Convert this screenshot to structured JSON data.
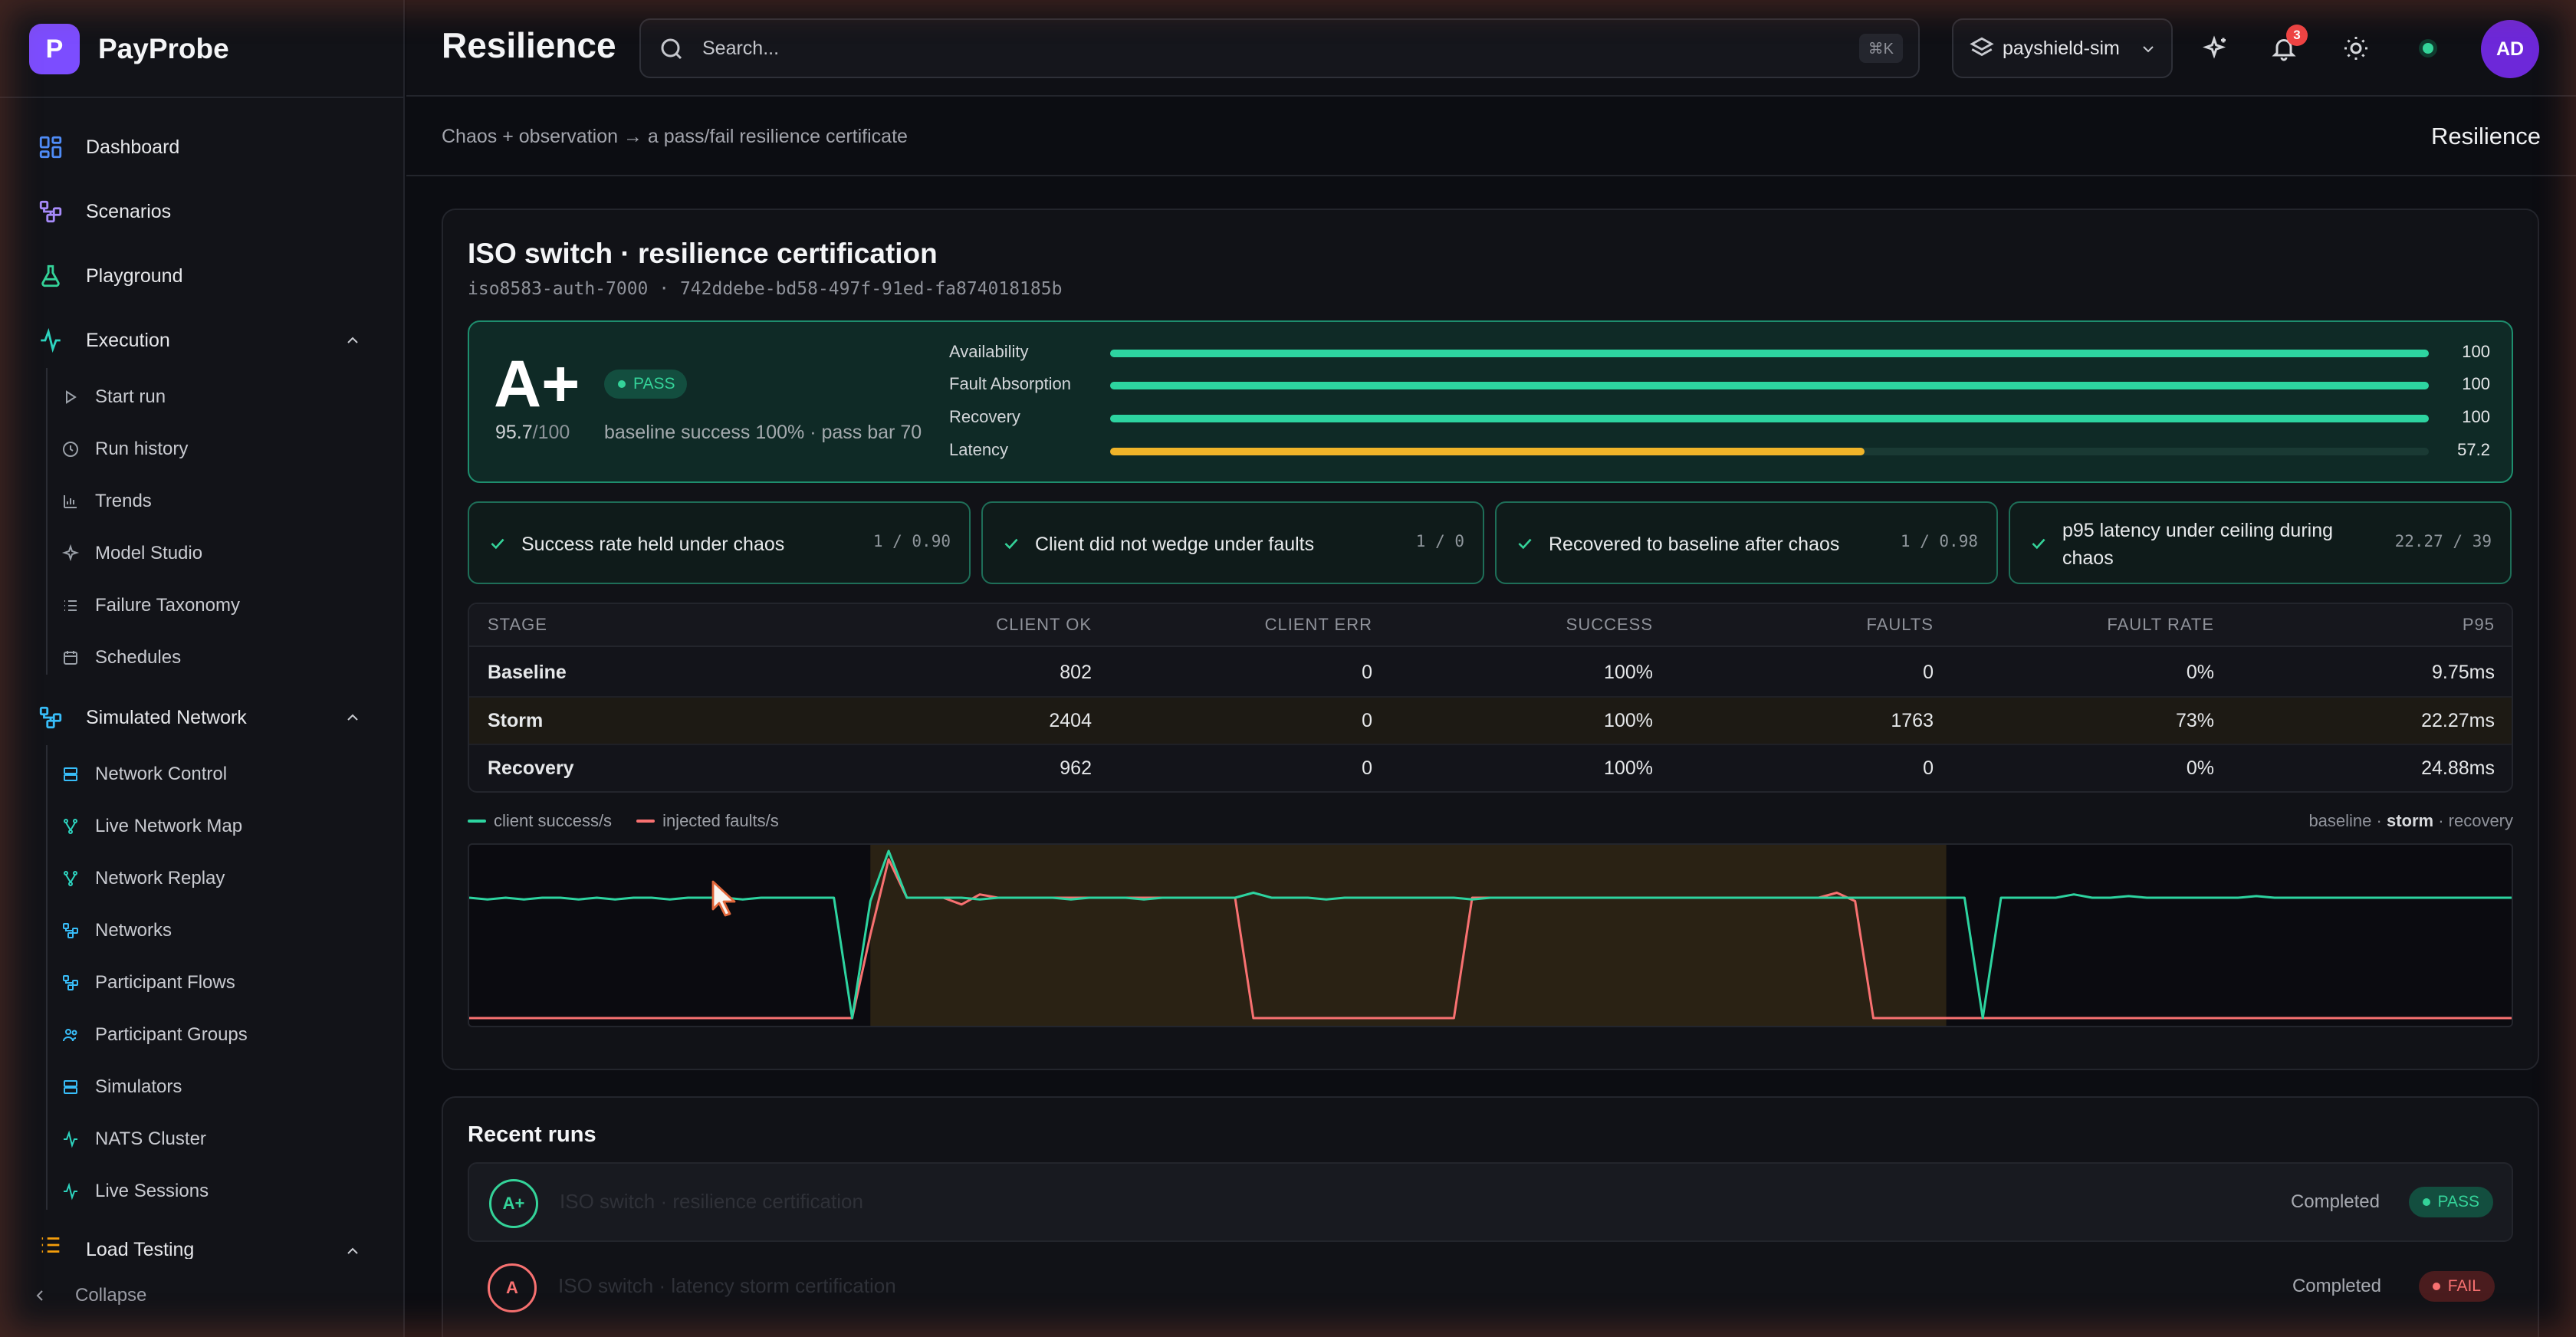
{
  "app": {
    "name": "PayProbe",
    "logo_letter": "P"
  },
  "sidebar": {
    "items": [
      {
        "label": "Dashboard",
        "icon": "dashboard-icon"
      },
      {
        "label": "Scenarios",
        "icon": "scenarios-icon"
      },
      {
        "label": "Playground",
        "icon": "flask-icon"
      }
    ],
    "execution": {
      "label": "Execution",
      "items": [
        "Start run",
        "Run history",
        "Trends",
        "Model Studio",
        "Failure Taxonomy",
        "Schedules"
      ]
    },
    "network": {
      "label": "Simulated Network",
      "items": [
        "Network Control",
        "Live Network Map",
        "Network Replay",
        "Networks",
        "Participant Flows",
        "Participant Groups",
        "Simulators",
        "NATS Cluster",
        "Live Sessions"
      ]
    },
    "load_testing": {
      "label": "Load Testing"
    },
    "collapse_label": "Collapse"
  },
  "topbar": {
    "title": "Resilience",
    "search_placeholder": "Search...",
    "search_shortcut": "⌘K",
    "environment": "payshield-sim",
    "notifications": "3",
    "user_initials": "AD"
  },
  "subheader": {
    "description": "Chaos + observation → a pass/fail resilience certificate",
    "breadcrumb": "Resilience"
  },
  "certificate": {
    "title": "ISO switch · resilience certification",
    "subtitle": "iso8583-auth-7000 · 742ddebe-bd58-497f-91ed-fa874018185b",
    "grade": "A+",
    "score": "95.7",
    "score_den": "/100",
    "status": "PASS",
    "note": "baseline success 100% · pass bar 70",
    "metrics": [
      {
        "label": "Availability",
        "value": "100",
        "fraction": 1.0,
        "color": "#2dd4a0"
      },
      {
        "label": "Fault Absorption",
        "value": "100",
        "fraction": 1.0,
        "color": "#2dd4a0"
      },
      {
        "label": "Recovery",
        "value": "100",
        "fraction": 1.0,
        "color": "#2dd4a0"
      },
      {
        "label": "Latency",
        "value": "57.2",
        "fraction": 0.572,
        "color": "#f0b429"
      }
    ],
    "checks": [
      {
        "label": "Success rate held under chaos",
        "value": "1 / 0.90"
      },
      {
        "label": "Client did not wedge under faults",
        "value": "1 / 0"
      },
      {
        "label": "Recovered to baseline after chaos",
        "value": "1 / 0.98"
      },
      {
        "label": "p95 latency under ceiling during chaos",
        "value": "22.27 / 39"
      }
    ],
    "table": {
      "headers": [
        "STAGE",
        "CLIENT OK",
        "CLIENT ERR",
        "SUCCESS",
        "FAULTS",
        "FAULT RATE",
        "P95"
      ],
      "rows": [
        [
          "Baseline",
          "802",
          "0",
          "100%",
          "0",
          "0%",
          "9.75ms"
        ],
        [
          "Storm",
          "2404",
          "0",
          "100%",
          "1763",
          "73%",
          "22.27ms"
        ],
        [
          "Recovery",
          "962",
          "0",
          "100%",
          "0",
          "0%",
          "24.88ms"
        ]
      ]
    }
  },
  "chart_data": {
    "type": "line",
    "series": [
      {
        "name": "client success/s",
        "color": "#2dd4a0",
        "values": [
          0.72,
          0.71,
          0.72,
          0.71,
          0.72,
          0.72,
          0.71,
          0.72,
          0.71,
          0.72,
          0.72,
          0.71,
          0.72,
          0.72,
          0.72,
          0.71,
          0.72,
          0.72,
          0.72,
          0.72,
          0.72,
          0.0,
          0.7,
          1.0,
          0.72,
          0.72,
          0.72,
          0.72,
          0.71,
          0.72,
          0.72,
          0.72,
          0.72,
          0.71,
          0.72,
          0.72,
          0.72,
          0.71,
          0.72,
          0.72,
          0.72,
          0.72,
          0.72,
          0.75,
          0.72,
          0.72,
          0.72,
          0.71,
          0.72,
          0.72,
          0.72,
          0.72,
          0.72,
          0.72,
          0.72,
          0.71,
          0.72,
          0.72,
          0.72,
          0.72,
          0.72,
          0.72,
          0.72,
          0.72,
          0.72,
          0.72,
          0.72,
          0.72,
          0.72,
          0.72,
          0.72,
          0.72,
          0.72,
          0.72,
          0.72,
          0.72,
          0.72,
          0.72,
          0.72,
          0.72,
          0.72,
          0.72,
          0.72,
          0.0,
          0.72,
          0.72,
          0.72,
          0.72,
          0.74,
          0.72,
          0.72,
          0.73,
          0.72,
          0.72,
          0.72,
          0.72,
          0.72,
          0.72,
          0.73,
          0.72,
          0.72,
          0.72,
          0.72,
          0.72,
          0.72,
          0.72,
          0.72,
          0.72,
          0.72,
          0.72,
          0.72,
          0.72,
          0.72
        ]
      },
      {
        "name": "injected faults/s",
        "color": "#f87171",
        "values": [
          0.0,
          0.0,
          0.0,
          0.0,
          0.0,
          0.0,
          0.0,
          0.0,
          0.0,
          0.0,
          0.0,
          0.0,
          0.0,
          0.0,
          0.0,
          0.0,
          0.0,
          0.0,
          0.0,
          0.0,
          0.0,
          0.0,
          0.5,
          0.95,
          0.72,
          0.72,
          0.72,
          0.68,
          0.74,
          0.72,
          0.72,
          0.72,
          0.72,
          0.72,
          0.72,
          0.72,
          0.72,
          0.72,
          0.72,
          0.72,
          0.72,
          0.72,
          0.72,
          0.0,
          0.0,
          0.0,
          0.0,
          0.0,
          0.0,
          0.0,
          0.0,
          0.0,
          0.0,
          0.0,
          0.0,
          0.72,
          0.72,
          0.72,
          0.72,
          0.72,
          0.72,
          0.72,
          0.72,
          0.72,
          0.72,
          0.72,
          0.72,
          0.72,
          0.72,
          0.72,
          0.72,
          0.72,
          0.72,
          0.72,
          0.72,
          0.75,
          0.7,
          0.0,
          0.0,
          0.0,
          0.0,
          0.0,
          0.0,
          0.0,
          0.0,
          0.0,
          0.0,
          0.0,
          0.0,
          0.0,
          0.0,
          0.0,
          0.0,
          0.0,
          0.0,
          0.0,
          0.0,
          0.0,
          0.0,
          0.0,
          0.0,
          0.0,
          0.0,
          0.0,
          0.0,
          0.0,
          0.0,
          0.0,
          0.0,
          0.0,
          0.0,
          0.0,
          0.0
        ]
      }
    ],
    "phases": [
      {
        "name": "baseline",
        "start": 0,
        "end": 22
      },
      {
        "name": "storm",
        "start": 22,
        "end": 81
      },
      {
        "name": "recovery",
        "start": 81,
        "end": 112
      }
    ],
    "ylim": [
      0,
      1
    ],
    "phase_labels": [
      "baseline",
      "storm",
      "recovery"
    ]
  },
  "recent_runs": {
    "title": "Recent runs",
    "rows": [
      {
        "grade": "A+",
        "name": "ISO switch · resilience certification",
        "status": "Completed",
        "result": "PASS"
      },
      {
        "grade": "A",
        "name": "ISO switch · latency storm certification",
        "status": "Completed",
        "result": "FAIL"
      }
    ]
  }
}
